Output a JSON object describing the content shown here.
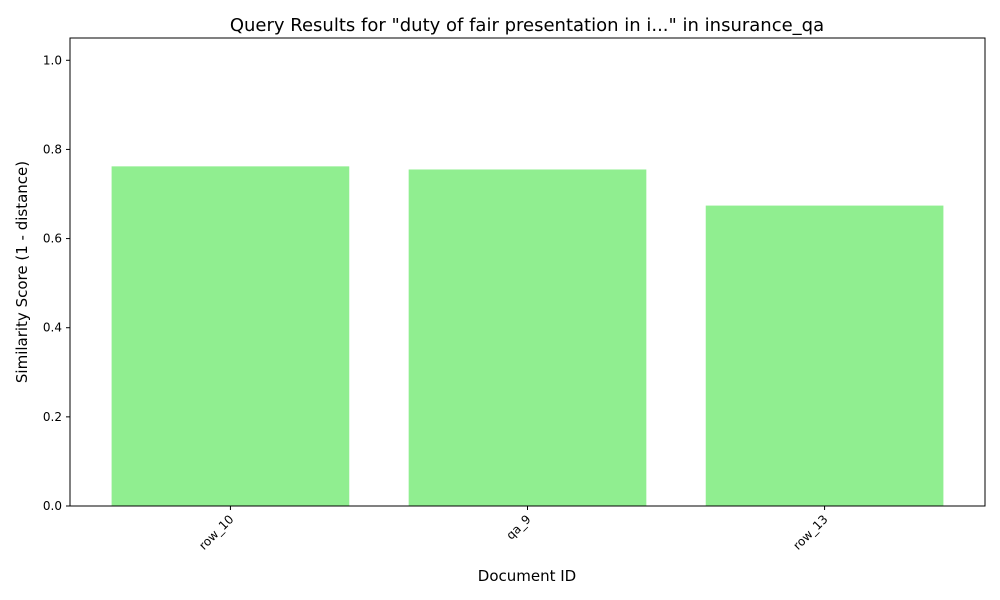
{
  "chart_data": {
    "type": "bar",
    "title": "Query Results for \"duty of fair presentation in i...\" in insurance_qa",
    "xlabel": "Document ID",
    "ylabel": "Similarity Score (1 - distance)",
    "categories": [
      "row_10",
      "qa_9",
      "row_13"
    ],
    "values": [
      0.762,
      0.755,
      0.674
    ],
    "ylim": [
      0,
      1.05
    ],
    "yticks": [
      0.0,
      0.2,
      0.4,
      0.6,
      0.8,
      1.0
    ],
    "ytick_labels": [
      "0.0",
      "0.2",
      "0.4",
      "0.6",
      "0.8",
      "1.0"
    ],
    "bar_color": "#90ee90",
    "grid": false,
    "xtick_rotation": "45-degree"
  }
}
